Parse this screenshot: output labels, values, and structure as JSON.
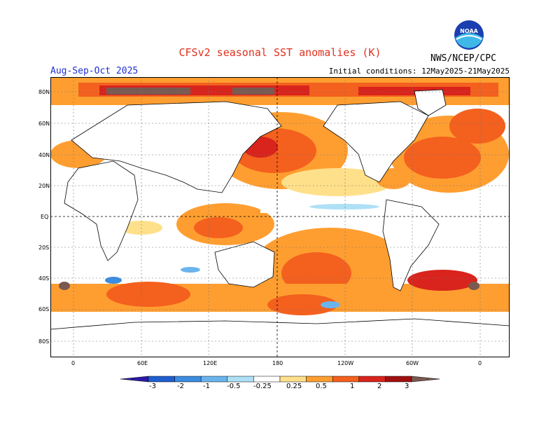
{
  "header": {
    "title": "CFSv2 seasonal SST anomalies (K)",
    "season": "Aug-Sep-Oct 2025",
    "initial_conditions": "Initial conditions: 12May2025-21May2025",
    "agency": "NWS/NCEP/CPC",
    "logo_text": "NOAA"
  },
  "map": {
    "lat_labels": [
      "80N",
      "60N",
      "40N",
      "20N",
      "EQ",
      "20S",
      "40S",
      "60S",
      "80S"
    ],
    "lon_labels": [
      "0",
      "60E",
      "120E",
      "180",
      "120W",
      "60W",
      "0"
    ]
  },
  "colorbar": {
    "labels": [
      "-3",
      "-2",
      "-1",
      "-0.5",
      "-0.25",
      "0.25",
      "0.5",
      "1",
      "2",
      "3"
    ],
    "colors": [
      "#2b1aa8",
      "#1f5fd0",
      "#3c8ce0",
      "#6ab4ee",
      "#aee0f6",
      "#ffffff",
      "#ffe08a",
      "#ff9e30",
      "#f4601e",
      "#d8241c",
      "#a01010",
      "#7a5a50"
    ]
  },
  "colors": {
    "title": "#e0301e",
    "season": "#2030d0",
    "ocean_neutral": "#ffffff",
    "land": "#ffffff"
  }
}
